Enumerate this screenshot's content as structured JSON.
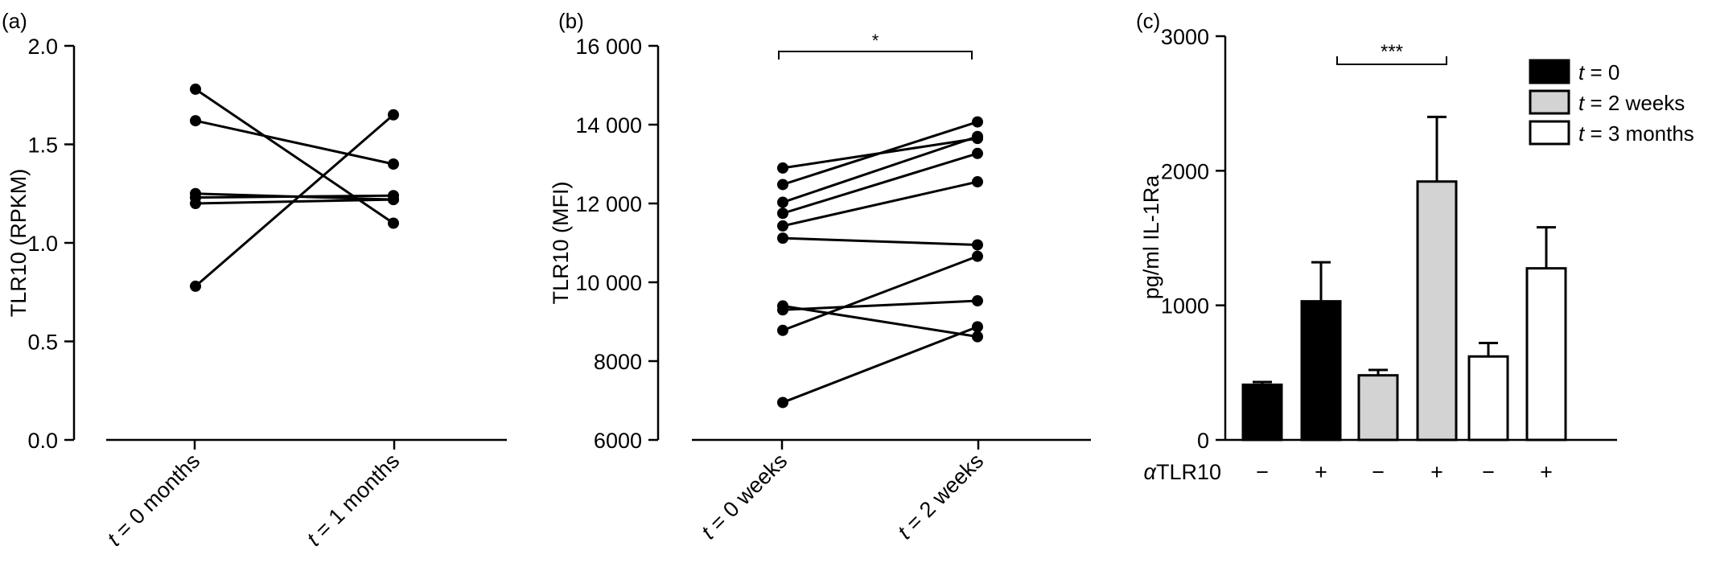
{
  "chart_data": [
    {
      "panel_label": "(a)",
      "type": "line",
      "subtype": "paired-dots",
      "ylabel": "TLR10 (RPKM)",
      "ylim": [
        0.0,
        2.0
      ],
      "yticks": [
        "0.0",
        "0.5",
        "1.0",
        "1.5",
        "2.0"
      ],
      "categories": [
        {
          "var": "t",
          "rest": " = 0 months"
        },
        {
          "var": "t",
          "rest": " = 1 months"
        }
      ],
      "pairs": [
        [
          1.78,
          1.1
        ],
        [
          1.62,
          1.4
        ],
        [
          1.25,
          1.22
        ],
        [
          1.23,
          1.24
        ],
        [
          1.2,
          1.22
        ],
        [
          0.78,
          1.65
        ]
      ]
    },
    {
      "panel_label": "(b)",
      "type": "line",
      "subtype": "paired-dots",
      "ylabel": "TLR10 (MFI)",
      "ylim": [
        6000,
        16000
      ],
      "yticks": [
        "6000",
        "8000",
        "10 000",
        "12 000",
        "14 000",
        "16 000"
      ],
      "categories": [
        {
          "var": "t",
          "rest": " = 0 weeks"
        },
        {
          "var": "t",
          "rest": " = 2 weeks"
        }
      ],
      "significance": "*",
      "pairs": [
        [
          12900,
          13650
        ],
        [
          12480,
          14070
        ],
        [
          12030,
          13700
        ],
        [
          11750,
          13270
        ],
        [
          11430,
          12550
        ],
        [
          11120,
          10950
        ],
        [
          9400,
          8620
        ],
        [
          9300,
          9530
        ],
        [
          8780,
          10660
        ],
        [
          6950,
          8870
        ]
      ]
    },
    {
      "panel_label": "(c)",
      "type": "bar",
      "ylabel": "pg/ml IL-1Ra",
      "ylim": [
        0,
        3000
      ],
      "yticks": [
        "0",
        "1000",
        "2000",
        "3000"
      ],
      "treatment_label": {
        "greek": "α",
        "rest": "TLR10"
      },
      "treatment_signs": [
        "−",
        "+",
        "−",
        "+",
        "−",
        "+"
      ],
      "significance": "***",
      "legend": [
        {
          "var": "t",
          "rest": " = 0",
          "color": "#000000"
        },
        {
          "var": "t",
          "rest": " = 2 weeks",
          "color": "#d3d3d3"
        },
        {
          "var": "t",
          "rest": " = 3 months",
          "color": "#ffffff"
        }
      ],
      "bars": [
        {
          "group": 0,
          "value": 410,
          "error": 20
        },
        {
          "group": 0,
          "value": 1030,
          "error": 290
        },
        {
          "group": 1,
          "value": 480,
          "error": 40
        },
        {
          "group": 1,
          "value": 1920,
          "error": 480
        },
        {
          "group": 2,
          "value": 620,
          "error": 100
        },
        {
          "group": 2,
          "value": 1275,
          "error": 305
        }
      ]
    }
  ]
}
